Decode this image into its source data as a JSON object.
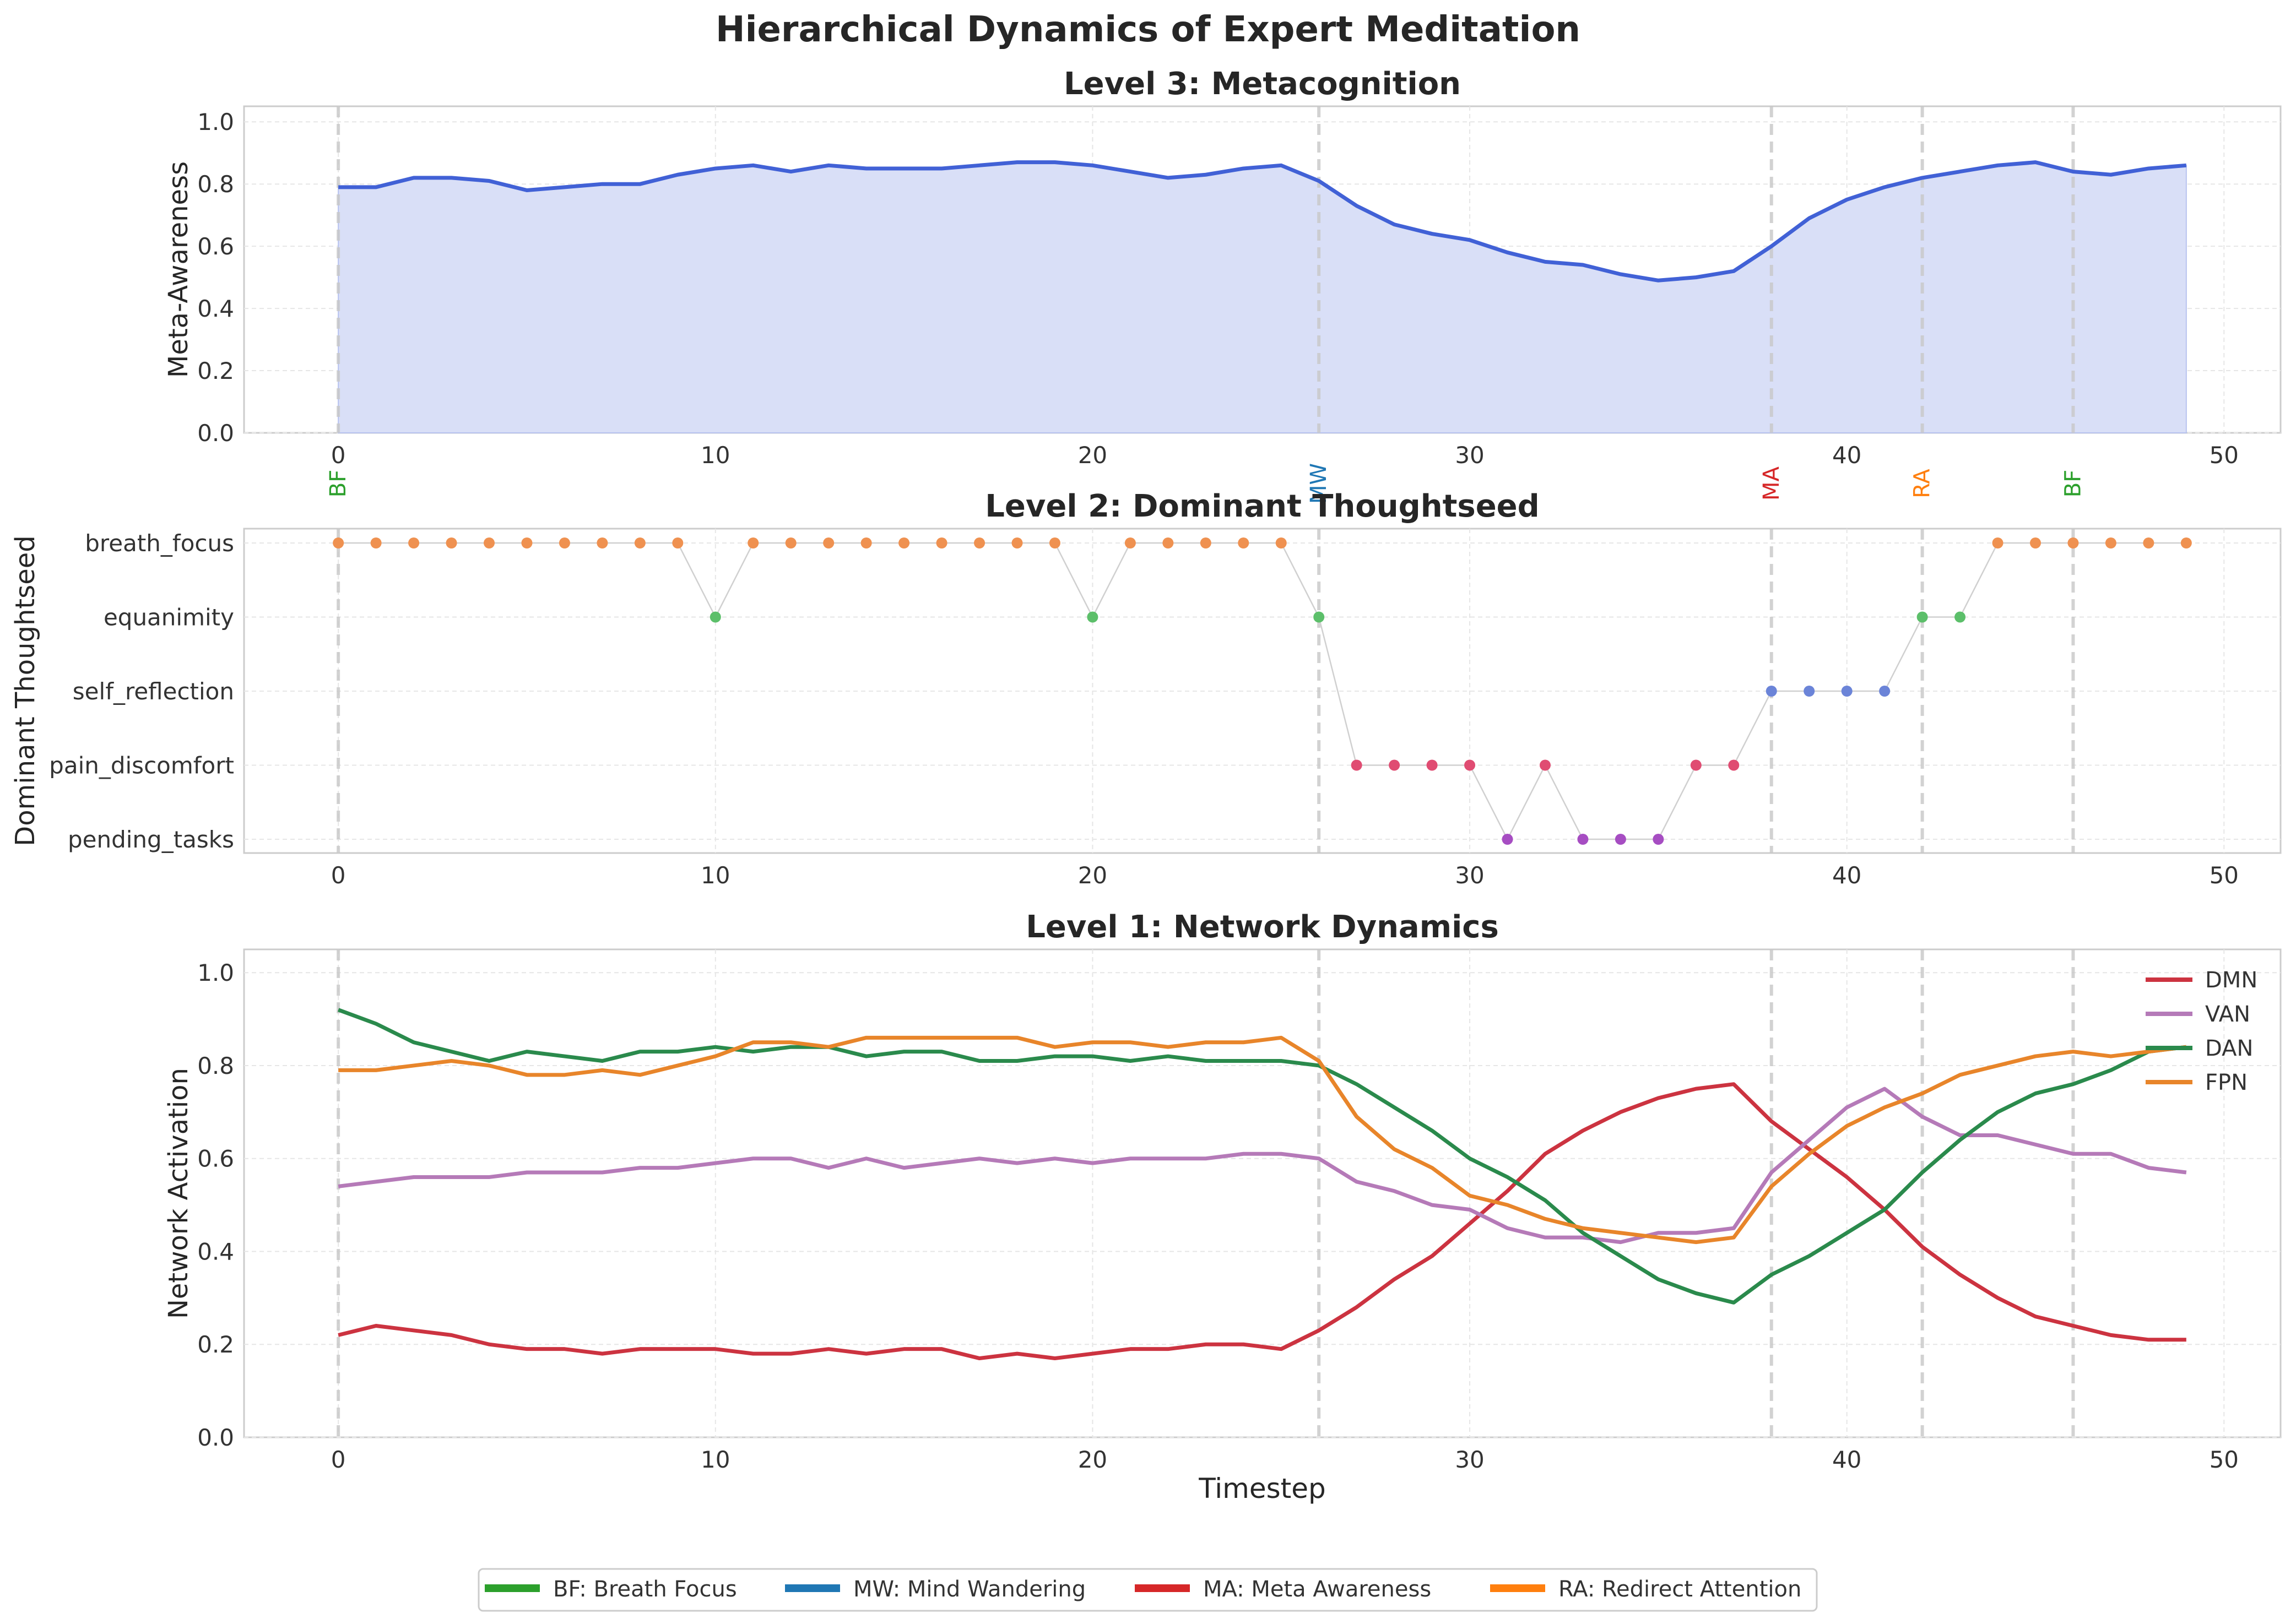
{
  "figure_title": "Hierarchical Dynamics of Expert Meditation",
  "xlabel": "Timestep",
  "xticks": [
    0,
    10,
    20,
    30,
    40,
    50
  ],
  "colors": {
    "BF": "#2ca02c",
    "MW": "#1f77b4",
    "MA": "#d62728",
    "RA": "#ff7f0e",
    "meta_line": "#4161d6",
    "meta_fill": "#d9dff7",
    "DMN": "#cc3340",
    "VAN": "#b57ab8",
    "DAN": "#2a8a4c",
    "FPN": "#e8852a",
    "breath_focus": "#ef9150",
    "equanimity": "#5cbf6a",
    "self_reflection": "#6b84d8",
    "pain_discomfort": "#e04c72",
    "pending_tasks": "#a64dc2"
  },
  "transitions": [
    {
      "t": 0,
      "label": "BF",
      "state": "BF"
    },
    {
      "t": 26,
      "label": "MW",
      "state": "MW"
    },
    {
      "t": 38,
      "label": "MA",
      "state": "MA"
    },
    {
      "t": 42,
      "label": "RA",
      "state": "RA"
    },
    {
      "t": 46,
      "label": "BF",
      "state": "BF"
    }
  ],
  "legend": [
    {
      "key": "BF",
      "label": "BF: Breath Focus"
    },
    {
      "key": "MW",
      "label": "MW: Mind Wandering"
    },
    {
      "key": "MA",
      "label": "MA: Meta Awareness"
    },
    {
      "key": "RA",
      "label": "RA: Redirect Attention"
    }
  ],
  "chart_data": [
    {
      "type": "area",
      "title": "Level 3: Metacognition",
      "xlabel": "",
      "ylabel": "Meta-Awareness",
      "xlim": [
        -2.5,
        51.5
      ],
      "ylim": [
        0,
        1.05
      ],
      "yticks": [
        "0.0",
        "0.2",
        "0.4",
        "0.6",
        "0.8",
        "1.0"
      ],
      "grid": true,
      "series": [
        {
          "key": "meta",
          "values": [
            0.79,
            0.79,
            0.82,
            0.82,
            0.81,
            0.78,
            0.79,
            0.8,
            0.8,
            0.83,
            0.85,
            0.86,
            0.84,
            0.86,
            0.85,
            0.85,
            0.85,
            0.86,
            0.87,
            0.87,
            0.86,
            0.84,
            0.82,
            0.83,
            0.85,
            0.86,
            0.81,
            0.73,
            0.67,
            0.64,
            0.62,
            0.58,
            0.55,
            0.54,
            0.51,
            0.49,
            0.5,
            0.52,
            0.6,
            0.69,
            0.75,
            0.79,
            0.82,
            0.84,
            0.86,
            0.87,
            0.84,
            0.83,
            0.85,
            0.86
          ]
        }
      ]
    },
    {
      "type": "scatter",
      "title": "Level 2: Dominant Thoughtseed",
      "xlabel": "",
      "ylabel": "Dominant Thoughtseed",
      "xlim": [
        -2.5,
        51.5
      ],
      "categories": [
        "breath_focus",
        "equanimity",
        "self_reflection",
        "pain_discomfort",
        "pending_tasks"
      ],
      "grid": true,
      "x": [
        0,
        1,
        2,
        3,
        4,
        5,
        6,
        7,
        8,
        9,
        10,
        11,
        12,
        13,
        14,
        15,
        16,
        17,
        18,
        19,
        20,
        21,
        22,
        23,
        24,
        25,
        26,
        27,
        28,
        29,
        30,
        31,
        32,
        33,
        34,
        35,
        36,
        37,
        38,
        39,
        40,
        41,
        42,
        43,
        44,
        45,
        46,
        47,
        48,
        49
      ],
      "values": [
        "breath_focus",
        "breath_focus",
        "breath_focus",
        "breath_focus",
        "breath_focus",
        "breath_focus",
        "breath_focus",
        "breath_focus",
        "breath_focus",
        "breath_focus",
        "equanimity",
        "breath_focus",
        "breath_focus",
        "breath_focus",
        "breath_focus",
        "breath_focus",
        "breath_focus",
        "breath_focus",
        "breath_focus",
        "breath_focus",
        "equanimity",
        "breath_focus",
        "breath_focus",
        "breath_focus",
        "breath_focus",
        "breath_focus",
        "equanimity",
        "pain_discomfort",
        "pain_discomfort",
        "pain_discomfort",
        "pain_discomfort",
        "pending_tasks",
        "pain_discomfort",
        "pending_tasks",
        "pending_tasks",
        "pending_tasks",
        "pain_discomfort",
        "pain_discomfort",
        "self_reflection",
        "self_reflection",
        "self_reflection",
        "self_reflection",
        "equanimity",
        "equanimity",
        "breath_focus",
        "breath_focus",
        "breath_focus",
        "breath_focus",
        "breath_focus",
        "breath_focus"
      ]
    },
    {
      "type": "line",
      "title": "Level 1: Network Dynamics",
      "xlabel": "Timestep",
      "ylabel": "Network Activation",
      "xlim": [
        -2.5,
        51.5
      ],
      "ylim": [
        0,
        1.05
      ],
      "yticks": [
        "0.0",
        "0.2",
        "0.4",
        "0.6",
        "0.8",
        "1.0"
      ],
      "grid": true,
      "legend_position": "top-right",
      "series": [
        {
          "name": "DMN",
          "values": [
            0.22,
            0.24,
            0.23,
            0.22,
            0.2,
            0.19,
            0.19,
            0.18,
            0.19,
            0.19,
            0.19,
            0.18,
            0.18,
            0.19,
            0.18,
            0.19,
            0.19,
            0.17,
            0.18,
            0.17,
            0.18,
            0.19,
            0.19,
            0.2,
            0.2,
            0.19,
            0.23,
            0.28,
            0.34,
            0.39,
            0.46,
            0.53,
            0.61,
            0.66,
            0.7,
            0.73,
            0.75,
            0.76,
            0.68,
            0.62,
            0.56,
            0.49,
            0.41,
            0.35,
            0.3,
            0.26,
            0.24,
            0.22,
            0.21,
            0.21
          ]
        },
        {
          "name": "VAN",
          "values": [
            0.54,
            0.55,
            0.56,
            0.56,
            0.56,
            0.57,
            0.57,
            0.57,
            0.58,
            0.58,
            0.59,
            0.6,
            0.6,
            0.58,
            0.6,
            0.58,
            0.59,
            0.6,
            0.59,
            0.6,
            0.59,
            0.6,
            0.6,
            0.6,
            0.61,
            0.61,
            0.6,
            0.55,
            0.53,
            0.5,
            0.49,
            0.45,
            0.43,
            0.43,
            0.42,
            0.44,
            0.44,
            0.45,
            0.57,
            0.64,
            0.71,
            0.75,
            0.69,
            0.65,
            0.65,
            0.63,
            0.61,
            0.61,
            0.58,
            0.57
          ]
        },
        {
          "name": "DAN",
          "values": [
            0.92,
            0.89,
            0.85,
            0.83,
            0.81,
            0.83,
            0.82,
            0.81,
            0.83,
            0.83,
            0.84,
            0.83,
            0.84,
            0.84,
            0.82,
            0.83,
            0.83,
            0.81,
            0.81,
            0.82,
            0.82,
            0.81,
            0.82,
            0.81,
            0.81,
            0.81,
            0.8,
            0.76,
            0.71,
            0.66,
            0.6,
            0.56,
            0.51,
            0.44,
            0.39,
            0.34,
            0.31,
            0.29,
            0.35,
            0.39,
            0.44,
            0.49,
            0.57,
            0.64,
            0.7,
            0.74,
            0.76,
            0.79,
            0.83,
            0.84
          ]
        },
        {
          "name": "FPN",
          "values": [
            0.79,
            0.79,
            0.8,
            0.81,
            0.8,
            0.78,
            0.78,
            0.79,
            0.78,
            0.8,
            0.82,
            0.85,
            0.85,
            0.84,
            0.86,
            0.86,
            0.86,
            0.86,
            0.86,
            0.84,
            0.85,
            0.85,
            0.84,
            0.85,
            0.85,
            0.86,
            0.81,
            0.69,
            0.62,
            0.58,
            0.52,
            0.5,
            0.47,
            0.45,
            0.44,
            0.43,
            0.42,
            0.43,
            0.54,
            0.61,
            0.67,
            0.71,
            0.74,
            0.78,
            0.8,
            0.82,
            0.83,
            0.82,
            0.83,
            0.84
          ]
        }
      ]
    }
  ]
}
